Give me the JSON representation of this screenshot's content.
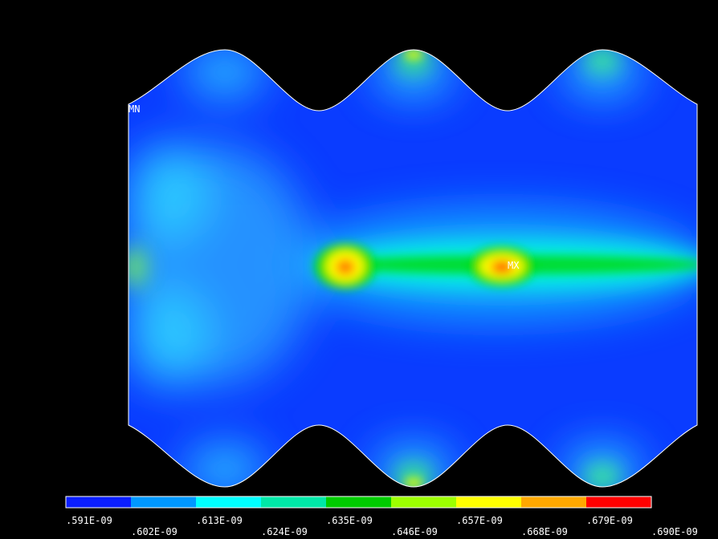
{
  "markers": {
    "min": "MN",
    "max": "MX"
  },
  "legend": {
    "colors": [
      "#0a1eff",
      "#0098ff",
      "#00ffff",
      "#00e8a8",
      "#00cc00",
      "#9cff00",
      "#ffff00",
      "#ffa800",
      "#ff0000"
    ],
    "labels": [
      ".591E-09",
      ".602E-09",
      ".613E-09",
      ".624E-09",
      ".635E-09",
      ".646E-09",
      ".657E-09",
      ".668E-09",
      ".679E-09",
      ".690E-09"
    ]
  }
}
